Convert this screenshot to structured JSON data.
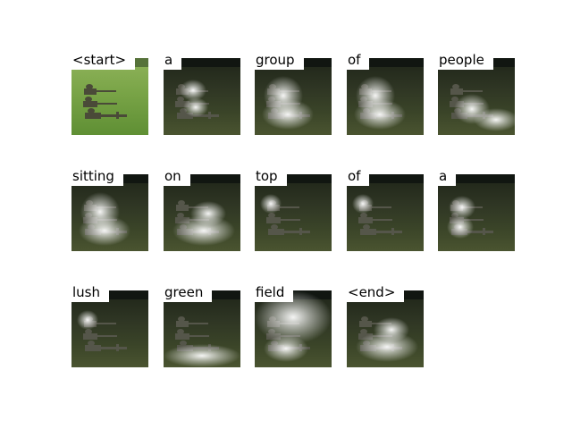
{
  "panels": [
    {
      "word": "<start>",
      "attention": "none"
    },
    {
      "word": "a",
      "attention": "left"
    },
    {
      "word": "group",
      "attention": "left-wide"
    },
    {
      "word": "of",
      "attention": "left-wide"
    },
    {
      "word": "people",
      "attention": "left-bottom"
    },
    {
      "word": "sitting",
      "attention": "left-wide"
    },
    {
      "word": "on",
      "attention": "center-bottom"
    },
    {
      "word": "top",
      "attention": "left-point"
    },
    {
      "word": "of",
      "attention": "left-point"
    },
    {
      "word": "a",
      "attention": "left-mid"
    },
    {
      "word": "lush",
      "attention": "left-point"
    },
    {
      "word": "green",
      "attention": "bottom"
    },
    {
      "word": "field",
      "attention": "top-full"
    },
    {
      "word": "<end>",
      "attention": "center-bottom"
    }
  ]
}
